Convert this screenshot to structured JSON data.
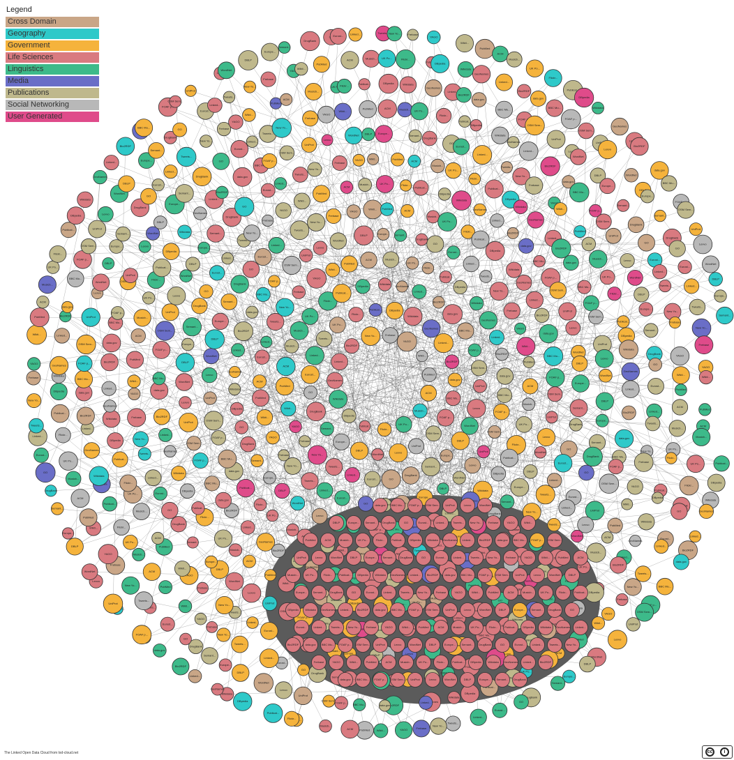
{
  "legend": {
    "title": "Legend",
    "items": [
      {
        "label": "Cross Domain",
        "color": "#c9a687"
      },
      {
        "label": "Geography",
        "color": "#2ec9c9"
      },
      {
        "label": "Government",
        "color": "#f5b33c"
      },
      {
        "label": "Life Sciences",
        "color": "#d97a80"
      },
      {
        "label": "Linguistics",
        "color": "#3dba8a"
      },
      {
        "label": "Media",
        "color": "#6a6ec7"
      },
      {
        "label": "Publications",
        "color": "#bfb88c"
      },
      {
        "label": "Social Networking",
        "color": "#b8b8b8"
      },
      {
        "label": "User Generated",
        "color": "#df4b8a"
      }
    ]
  },
  "nodes": [
    {
      "label": "Publicat...",
      "category": 6
    },
    {
      "label": "DBpedia",
      "category": 0
    },
    {
      "label": "Wikidata",
      "category": 0
    },
    {
      "label": "GeoNames",
      "category": 1
    },
    {
      "label": "Linked...",
      "category": 4
    },
    {
      "label": "Bio2RDF",
      "category": 3
    },
    {
      "label": "data.gov",
      "category": 2
    },
    {
      "label": "BBC Mu...",
      "category": 5
    },
    {
      "label": "FOAF p...",
      "category": 7
    },
    {
      "label": "OSM Sem...",
      "category": 1
    },
    {
      "label": "UniProt",
      "category": 3
    },
    {
      "label": "Lexvo",
      "category": 4
    },
    {
      "label": "WordNet",
      "category": 4
    },
    {
      "label": "DBLP",
      "category": 6
    },
    {
      "label": "Europe...",
      "category": 2
    },
    {
      "label": "Semant...",
      "category": 8
    },
    {
      "label": "DrugBank",
      "category": 3
    },
    {
      "label": "GO",
      "category": 3
    },
    {
      "label": "Eurost...",
      "category": 2
    },
    {
      "label": "Linked...",
      "category": 6
    },
    {
      "label": "Tweets...",
      "category": 7
    },
    {
      "label": "New Yo...",
      "category": 5
    },
    {
      "label": "Frebase",
      "category": 0
    },
    {
      "label": "YAGO",
      "category": 0
    },
    {
      "label": "Wikti...",
      "category": 4
    },
    {
      "label": "PubMed",
      "category": 3
    },
    {
      "label": "ACM",
      "category": 6
    },
    {
      "label": "Musicb...",
      "category": 5
    },
    {
      "label": "UK Po...",
      "category": 2
    },
    {
      "label": "Flickr...",
      "category": 8
    }
  ],
  "footer": {
    "credit": "The Linked Open Data Cloud from lod-cloud.net",
    "license_cc": "cc",
    "license_by": "i"
  }
}
